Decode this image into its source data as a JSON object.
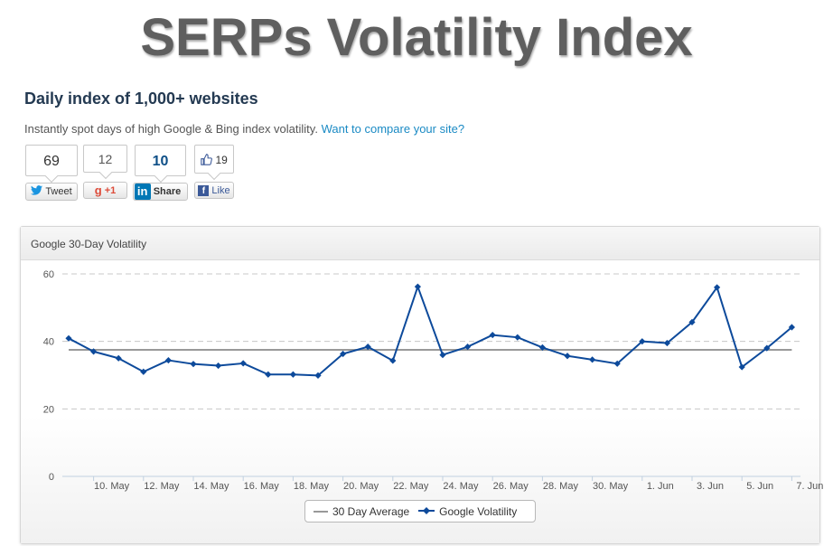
{
  "header": {
    "title": "SERPs Volatility Index",
    "subtitle": "Daily index of 1,000+ websites",
    "intro_text": "Instantly spot days of high Google & Bing index volatility.",
    "intro_link": "Want to compare your site?"
  },
  "social": {
    "twitter": {
      "count": "69",
      "label": "Tweet",
      "icon": "twitter-bird-icon",
      "color": "#1b95e0"
    },
    "gplus": {
      "count": "12",
      "label": "+1",
      "icon": "google-g-icon",
      "color": "#dd4b39"
    },
    "linkedin": {
      "count": "10",
      "label": "Share",
      "icon": "linkedin-in-icon",
      "color": "#0077b5"
    },
    "facebook": {
      "count": "19",
      "label": "Like",
      "icon": "facebook-f-icon",
      "like_icon": "thumbs-up-icon",
      "color": "#3b5998"
    }
  },
  "panel": {
    "title": "Google 30-Day Volatility"
  },
  "legend": {
    "average_label": "30 Day Average",
    "series_label": "Google Volatility"
  },
  "chart_data": {
    "type": "line",
    "title": "Google 30-Day Volatility",
    "ylim": [
      0,
      60
    ],
    "yticks": [
      0,
      20,
      40,
      60
    ],
    "x_tick_labels": [
      "10. May",
      "12. May",
      "14. May",
      "16. May",
      "18. May",
      "20. May",
      "22. May",
      "24. May",
      "26. May",
      "28. May",
      "30. May",
      "1. Jun",
      "3. Jun",
      "5. Jun",
      "7. Jun"
    ],
    "x": [
      "9. May",
      "10. May",
      "11. May",
      "12. May",
      "13. May",
      "14. May",
      "15. May",
      "16. May",
      "17. May",
      "18. May",
      "19. May",
      "20. May",
      "21. May",
      "22. May",
      "23. May",
      "24. May",
      "25. May",
      "26. May",
      "27. May",
      "28. May",
      "29. May",
      "30. May",
      "31. May",
      "1. Jun",
      "2. Jun",
      "3. Jun",
      "4. Jun",
      "5. Jun",
      "6. Jun",
      "7. Jun"
    ],
    "grid": true,
    "legend_position": "bottom-center",
    "series": [
      {
        "name": "30 Day Average",
        "type": "line",
        "color": "#999999",
        "values": [
          37.5,
          37.5,
          37.5,
          37.5,
          37.5,
          37.5,
          37.5,
          37.5,
          37.5,
          37.5,
          37.5,
          37.5,
          37.5,
          37.5,
          37.5,
          37.5,
          37.5,
          37.5,
          37.5,
          37.5,
          37.5,
          37.5,
          37.5,
          37.5,
          37.5,
          37.5,
          37.5,
          37.5,
          37.5,
          37.5
        ]
      },
      {
        "name": "Google Volatility",
        "type": "line",
        "color": "#0d4a9b",
        "values": [
          40.9,
          37.0,
          35.0,
          31.0,
          34.4,
          33.3,
          32.8,
          33.5,
          30.2,
          30.2,
          29.9,
          36.3,
          38.4,
          34.3,
          56.2,
          36.0,
          38.4,
          41.9,
          41.2,
          38.2,
          35.7,
          34.6,
          33.4,
          40.0,
          39.5,
          45.7,
          56.0,
          32.4,
          38.0,
          44.2
        ]
      }
    ]
  }
}
